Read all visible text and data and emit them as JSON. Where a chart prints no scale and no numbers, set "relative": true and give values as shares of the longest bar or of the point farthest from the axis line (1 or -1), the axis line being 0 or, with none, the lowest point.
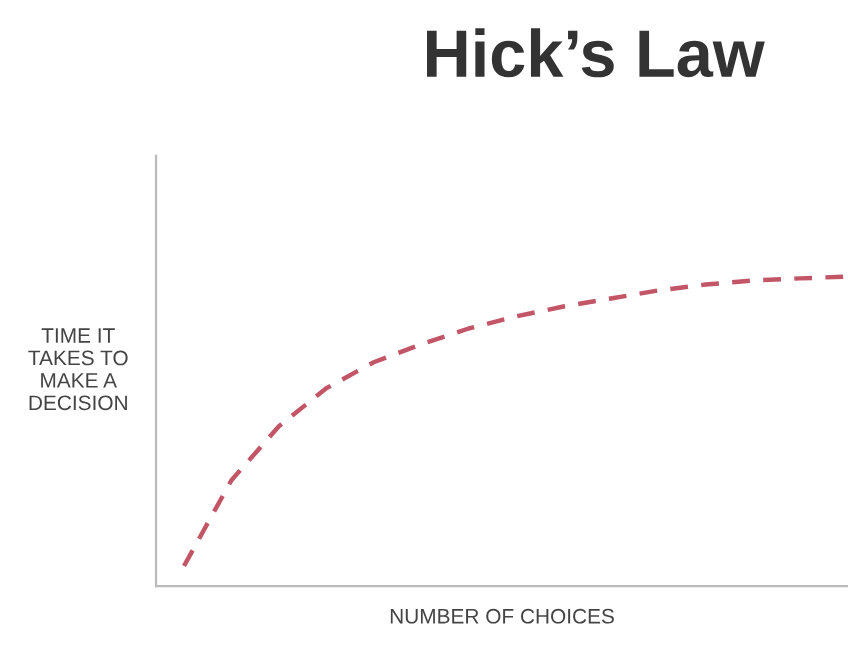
{
  "chart_data": {
    "type": "line",
    "title": "Hick’s Law",
    "xlabel": "NUMBER OF CHOICES",
    "ylabel": "TIME IT\nTAKES TO\nMAKE A\nDECISION",
    "relative": true,
    "categories": [
      null,
      null,
      null,
      null,
      null,
      null,
      null,
      null,
      null,
      null,
      null,
      null,
      null,
      null,
      null
    ],
    "series": [
      {
        "color": "#c25566",
        "values": [
          0.065,
          0.342,
          0.516,
          0.639,
          0.723,
          0.781,
          0.832,
          0.871,
          0.903,
          0.929,
          0.955,
          0.974,
          0.987,
          0.994,
          1.0
        ]
      }
    ],
    "line_style": "dashed",
    "marker": "none",
    "tick_labels": false
  }
}
